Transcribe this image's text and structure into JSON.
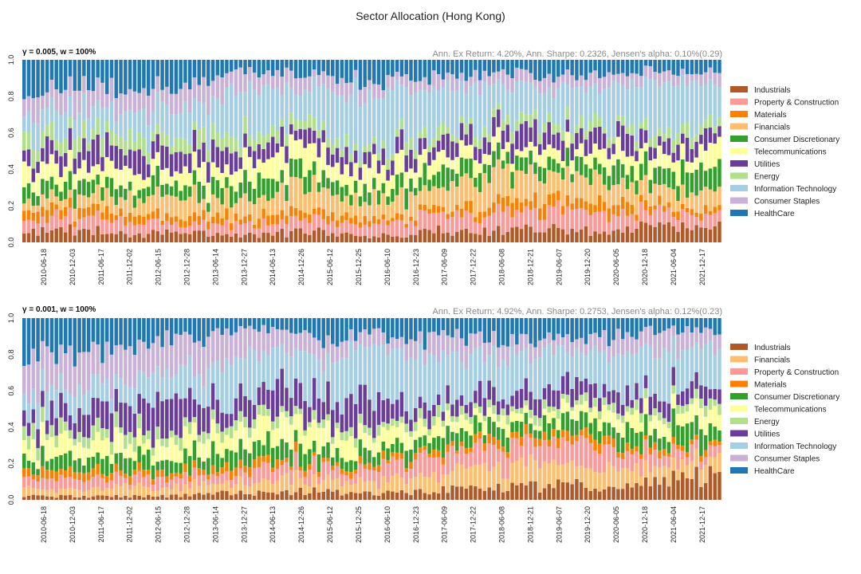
{
  "figure": {
    "title": "Sector Allocation (Hong Kong)"
  },
  "chart_data": [
    {
      "type": "bar",
      "stacked": true,
      "panel_title": "γ = 0.005, w = 100%",
      "stats_text": "Ann. Ex Return: 4.20%, Ann. Sharpe: 0.2326, Jensen's alpha: 0.10%(0.29)",
      "ylim": [
        0,
        1
      ],
      "yticks": [
        "0.0",
        "0.2",
        "0.4",
        "0.6",
        "0.8",
        "1.0"
      ],
      "xticks": [
        "2010-06-18",
        "2010-12-03",
        "2011-06-17",
        "2011-12-02",
        "2012-06-15",
        "2012-12-28",
        "2013-06-14",
        "2013-12-27",
        "2014-06-13",
        "2014-12-26",
        "2015-06-12",
        "2015-12-25",
        "2016-06-10",
        "2016-12-23",
        "2017-06-09",
        "2017-12-22",
        "2018-06-08",
        "2018-12-21",
        "2019-06-07",
        "2019-12-20",
        "2020-06-05",
        "2020-12-18",
        "2021-06-04",
        "2021-12-17"
      ],
      "legend_position": "right",
      "grid": false,
      "series": [
        {
          "name": "Industrials",
          "color": "#b15928",
          "anchors": [
            0.06,
            0.07,
            0.07,
            0.05,
            0.04,
            0.05,
            0.05,
            0.04,
            0.04,
            0.05,
            0.06,
            0.04,
            0.03,
            0.04,
            0.05,
            0.05,
            0.06,
            0.07,
            0.08,
            0.07,
            0.05,
            0.07,
            0.1,
            0.09,
            0.1
          ]
        },
        {
          "name": "Property & Construction",
          "color": "#fb9a99",
          "anchors": [
            0.08,
            0.08,
            0.08,
            0.06,
            0.06,
            0.05,
            0.05,
            0.05,
            0.06,
            0.06,
            0.07,
            0.06,
            0.05,
            0.07,
            0.08,
            0.09,
            0.08,
            0.1,
            0.1,
            0.1,
            0.1,
            0.08,
            0.07,
            0.06,
            0.06
          ]
        },
        {
          "name": "Materials",
          "color": "#ff7f00",
          "anchors": [
            0.06,
            0.05,
            0.05,
            0.05,
            0.04,
            0.04,
            0.05,
            0.05,
            0.04,
            0.05,
            0.04,
            0.04,
            0.05,
            0.03,
            0.03,
            0.04,
            0.05,
            0.06,
            0.05,
            0.05,
            0.06,
            0.05,
            0.04,
            0.04,
            0.04
          ]
        },
        {
          "name": "Financials",
          "color": "#fdbf6f",
          "anchors": [
            0.06,
            0.06,
            0.07,
            0.08,
            0.09,
            0.1,
            0.09,
            0.09,
            0.1,
            0.12,
            0.13,
            0.12,
            0.1,
            0.11,
            0.12,
            0.13,
            0.14,
            0.15,
            0.15,
            0.14,
            0.12,
            0.11,
            0.1,
            0.09,
            0.1
          ]
        },
        {
          "name": "Consumer Discretionary",
          "color": "#33a02c",
          "anchors": [
            0.07,
            0.08,
            0.08,
            0.08,
            0.08,
            0.07,
            0.08,
            0.09,
            0.1,
            0.09,
            0.09,
            0.08,
            0.07,
            0.08,
            0.09,
            0.08,
            0.07,
            0.07,
            0.06,
            0.07,
            0.09,
            0.1,
            0.1,
            0.11,
            0.1
          ]
        },
        {
          "name": "Telecommunications",
          "color": "#ffff99",
          "anchors": [
            0.1,
            0.1,
            0.09,
            0.09,
            0.09,
            0.1,
            0.1,
            0.11,
            0.11,
            0.12,
            0.12,
            0.11,
            0.1,
            0.09,
            0.08,
            0.07,
            0.07,
            0.06,
            0.06,
            0.07,
            0.08,
            0.09,
            0.09,
            0.09,
            0.1
          ]
        },
        {
          "name": "Utilities",
          "color": "#6a3d9a",
          "anchors": [
            0.09,
            0.09,
            0.1,
            0.1,
            0.11,
            0.11,
            0.1,
            0.09,
            0.08,
            0.08,
            0.08,
            0.07,
            0.07,
            0.08,
            0.08,
            0.09,
            0.09,
            0.1,
            0.1,
            0.1,
            0.1,
            0.09,
            0.08,
            0.09,
            0.09
          ]
        },
        {
          "name": "Energy",
          "color": "#b2df8a",
          "anchors": [
            0.08,
            0.08,
            0.08,
            0.08,
            0.08,
            0.07,
            0.07,
            0.07,
            0.07,
            0.06,
            0.06,
            0.06,
            0.05,
            0.05,
            0.05,
            0.05,
            0.05,
            0.05,
            0.05,
            0.05,
            0.05,
            0.05,
            0.06,
            0.06,
            0.06
          ]
        },
        {
          "name": "Information Technology",
          "color": "#a6cee3",
          "anchors": [
            0.12,
            0.12,
            0.12,
            0.13,
            0.13,
            0.14,
            0.15,
            0.22,
            0.24,
            0.22,
            0.2,
            0.25,
            0.3,
            0.28,
            0.25,
            0.24,
            0.23,
            0.21,
            0.2,
            0.21,
            0.22,
            0.24,
            0.24,
            0.24,
            0.23
          ]
        },
        {
          "name": "Consumer Staples",
          "color": "#cab2d6",
          "anchors": [
            0.12,
            0.12,
            0.12,
            0.12,
            0.13,
            0.12,
            0.12,
            0.12,
            0.09,
            0.08,
            0.07,
            0.07,
            0.07,
            0.07,
            0.07,
            0.07,
            0.06,
            0.06,
            0.06,
            0.06,
            0.06,
            0.06,
            0.06,
            0.06,
            0.06
          ]
        },
        {
          "name": "HealthCare",
          "color": "#1f78b4",
          "anchors": [
            0.16,
            0.15,
            0.14,
            0.16,
            0.15,
            0.15,
            0.14,
            0.07,
            0.07,
            0.07,
            0.08,
            0.1,
            0.11,
            0.1,
            0.1,
            0.09,
            0.1,
            0.07,
            0.09,
            0.08,
            0.07,
            0.06,
            0.06,
            0.07,
            0.06
          ]
        }
      ]
    },
    {
      "type": "bar",
      "stacked": true,
      "panel_title": "γ = 0.001, w = 100%",
      "stats_text": "Ann. Ex Return: 4.92%, Ann. Sharpe: 0.2753, Jensen's alpha: 0.12%(0.23)",
      "ylim": [
        0,
        1
      ],
      "yticks": [
        "0.0",
        "0.2",
        "0.4",
        "0.6",
        "0.8",
        "1.0"
      ],
      "xticks": [
        "2010-06-18",
        "2010-12-03",
        "2011-06-17",
        "2011-12-02",
        "2012-06-15",
        "2012-12-28",
        "2013-06-14",
        "2013-12-27",
        "2014-06-13",
        "2014-12-26",
        "2015-06-12",
        "2015-12-25",
        "2016-06-10",
        "2016-12-23",
        "2017-06-09",
        "2017-12-22",
        "2018-06-08",
        "2018-12-21",
        "2019-06-07",
        "2019-12-20",
        "2020-06-05",
        "2020-12-18",
        "2021-06-04",
        "2021-12-17"
      ],
      "legend_position": "right",
      "grid": false,
      "series": [
        {
          "name": "Industrials",
          "color": "#b15928",
          "anchors": [
            0.02,
            0.02,
            0.02,
            0.02,
            0.02,
            0.02,
            0.03,
            0.04,
            0.04,
            0.04,
            0.05,
            0.04,
            0.03,
            0.04,
            0.05,
            0.06,
            0.06,
            0.07,
            0.08,
            0.08,
            0.07,
            0.08,
            0.1,
            0.12,
            0.12
          ]
        },
        {
          "name": "Financials",
          "color": "#fdbf6f",
          "anchors": [
            0.04,
            0.04,
            0.04,
            0.05,
            0.05,
            0.05,
            0.06,
            0.06,
            0.06,
            0.06,
            0.07,
            0.06,
            0.06,
            0.07,
            0.08,
            0.1,
            0.11,
            0.12,
            0.12,
            0.11,
            0.1,
            0.09,
            0.08,
            0.08,
            0.08
          ]
        },
        {
          "name": "Property & Construction",
          "color": "#fb9a99",
          "anchors": [
            0.05,
            0.05,
            0.05,
            0.05,
            0.05,
            0.05,
            0.06,
            0.07,
            0.07,
            0.07,
            0.07,
            0.06,
            0.06,
            0.08,
            0.09,
            0.1,
            0.11,
            0.11,
            0.12,
            0.12,
            0.1,
            0.09,
            0.08,
            0.07,
            0.06
          ]
        },
        {
          "name": "Materials",
          "color": "#ff7f00",
          "anchors": [
            0.04,
            0.04,
            0.04,
            0.04,
            0.04,
            0.03,
            0.04,
            0.04,
            0.04,
            0.03,
            0.03,
            0.03,
            0.03,
            0.03,
            0.03,
            0.03,
            0.04,
            0.04,
            0.04,
            0.04,
            0.04,
            0.03,
            0.03,
            0.03,
            0.03
          ]
        },
        {
          "name": "Consumer Discretionary",
          "color": "#33a02c",
          "anchors": [
            0.07,
            0.07,
            0.07,
            0.08,
            0.08,
            0.08,
            0.08,
            0.09,
            0.1,
            0.09,
            0.08,
            0.07,
            0.07,
            0.08,
            0.08,
            0.08,
            0.07,
            0.07,
            0.07,
            0.08,
            0.09,
            0.1,
            0.11,
            0.11,
            0.1
          ]
        },
        {
          "name": "Telecommunications",
          "color": "#ffff99",
          "anchors": [
            0.09,
            0.09,
            0.09,
            0.09,
            0.09,
            0.09,
            0.1,
            0.11,
            0.12,
            0.12,
            0.11,
            0.1,
            0.09,
            0.08,
            0.07,
            0.06,
            0.06,
            0.05,
            0.05,
            0.06,
            0.07,
            0.08,
            0.08,
            0.08,
            0.09
          ]
        },
        {
          "name": "Energy",
          "color": "#b2df8a",
          "anchors": [
            0.06,
            0.06,
            0.06,
            0.06,
            0.06,
            0.05,
            0.05,
            0.05,
            0.05,
            0.04,
            0.04,
            0.04,
            0.04,
            0.04,
            0.04,
            0.04,
            0.04,
            0.04,
            0.04,
            0.04,
            0.04,
            0.04,
            0.05,
            0.05,
            0.05
          ]
        },
        {
          "name": "Utilities",
          "color": "#6a3d9a",
          "anchors": [
            0.12,
            0.12,
            0.12,
            0.14,
            0.16,
            0.22,
            0.14,
            0.1,
            0.12,
            0.16,
            0.12,
            0.14,
            0.16,
            0.1,
            0.08,
            0.08,
            0.09,
            0.09,
            0.09,
            0.09,
            0.09,
            0.08,
            0.08,
            0.08,
            0.08
          ]
        },
        {
          "name": "Information Technology",
          "color": "#a6cee3",
          "anchors": [
            0.12,
            0.12,
            0.12,
            0.12,
            0.13,
            0.13,
            0.14,
            0.22,
            0.23,
            0.22,
            0.22,
            0.26,
            0.3,
            0.28,
            0.26,
            0.24,
            0.22,
            0.2,
            0.19,
            0.19,
            0.2,
            0.22,
            0.22,
            0.22,
            0.22
          ]
        },
        {
          "name": "Consumer Staples",
          "color": "#cab2d6",
          "anchors": [
            0.2,
            0.2,
            0.2,
            0.19,
            0.18,
            0.16,
            0.17,
            0.16,
            0.12,
            0.1,
            0.1,
            0.09,
            0.08,
            0.09,
            0.1,
            0.1,
            0.09,
            0.09,
            0.08,
            0.08,
            0.09,
            0.1,
            0.1,
            0.09,
            0.09
          ]
        },
        {
          "name": "HealthCare",
          "color": "#1f78b4",
          "anchors": [
            0.19,
            0.19,
            0.19,
            0.16,
            0.14,
            0.12,
            0.13,
            0.08,
            0.05,
            0.07,
            0.11,
            0.11,
            0.08,
            0.11,
            0.12,
            0.11,
            0.11,
            0.12,
            0.12,
            0.11,
            0.11,
            0.09,
            0.07,
            0.07,
            0.08
          ]
        }
      ]
    }
  ]
}
